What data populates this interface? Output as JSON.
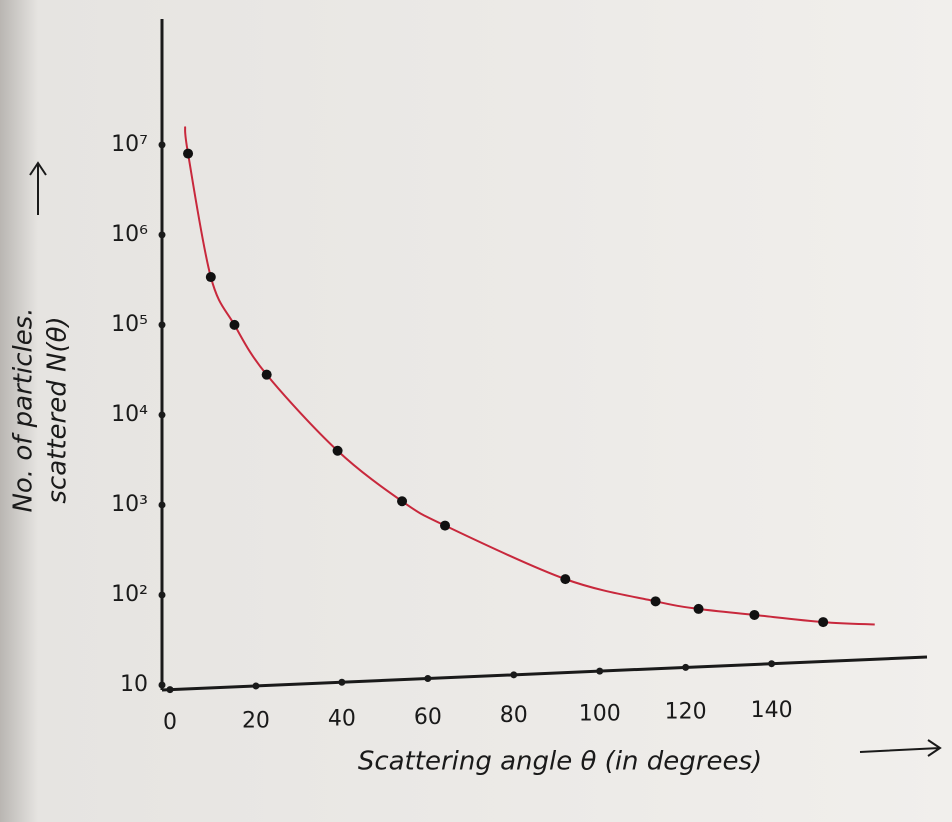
{
  "chart_data": {
    "type": "scatter",
    "y_scale": "log",
    "x_label": "Scattering angle θ (in degrees)",
    "y_label": [
      "No. of particles.",
      "scattered N(θ)"
    ],
    "xlim": [
      0,
      175
    ],
    "ylim": [
      10,
      250000000
    ],
    "xticks": [
      0,
      20,
      40,
      60,
      80,
      100,
      120,
      140
    ],
    "yticks": [
      10,
      {
        "value": 100,
        "label": "10²"
      },
      {
        "value": 1000,
        "label": "10³"
      },
      {
        "value": 10000,
        "label": "10⁴"
      },
      {
        "value": 100000,
        "label": "10⁵"
      },
      {
        "value": 1000000,
        "label": "10⁶"
      },
      {
        "value": 10000000,
        "label": "10⁷"
      }
    ],
    "series": [
      {
        "color": "#c8283c",
        "mode": "line",
        "x": [
          3.5,
          4.2,
          9.5,
          15,
          22.5,
          39,
          54,
          64,
          92,
          113,
          123,
          136,
          152,
          164
        ],
        "values": [
          16000000,
          8000000,
          340000,
          100000,
          28000,
          4000,
          1100,
          590,
          150,
          85,
          70,
          60,
          50,
          47
        ]
      },
      {
        "color": "#111111",
        "mode": "markers",
        "x": [
          4.2,
          9.5,
          15,
          22.5,
          39,
          54,
          64,
          92,
          113,
          123,
          136,
          152
        ],
        "values": [
          8000000,
          340000,
          100000,
          28000,
          4000,
          1100,
          590,
          150,
          85,
          70,
          60,
          50
        ]
      }
    ]
  }
}
